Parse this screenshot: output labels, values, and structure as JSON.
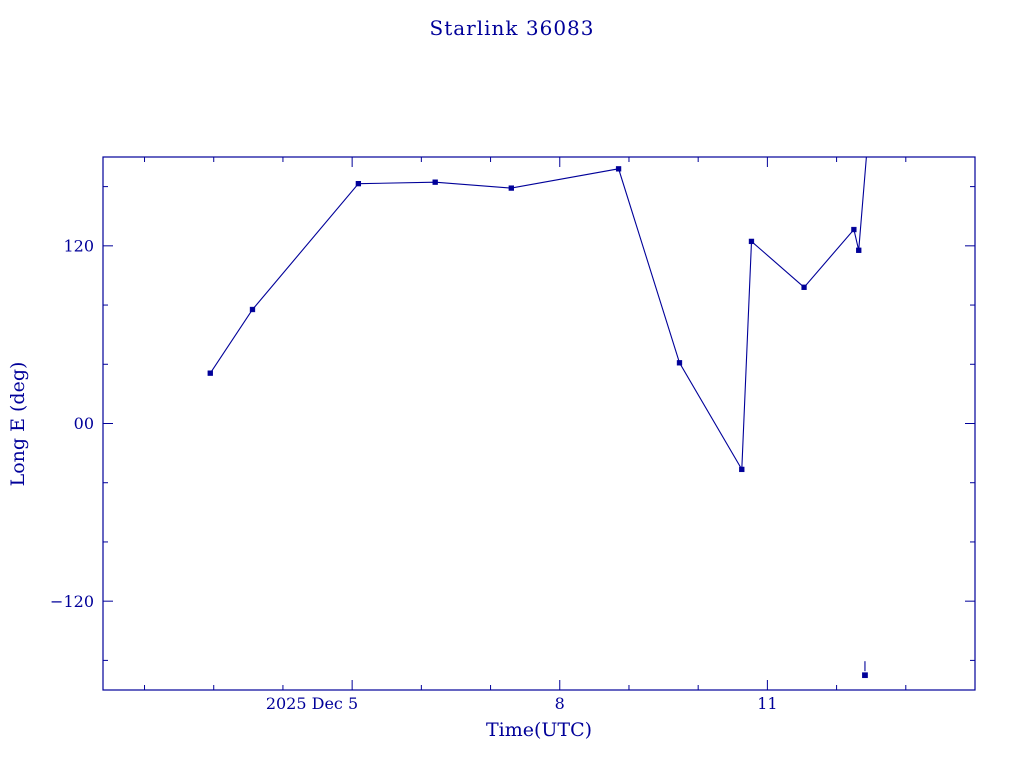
{
  "colors": {
    "plot": "#000099",
    "background": "#ffffff"
  },
  "chart_data": {
    "type": "line",
    "title": "Starlink 36083",
    "xlabel": "Time(UTC)",
    "ylabel": "Long E (deg)",
    "x_unit": "day of December 2025 (UTC), decimal days",
    "xlim": [
      1.4,
      14.0
    ],
    "ylim": [
      -180,
      180
    ],
    "grid": false,
    "legend": "none",
    "tick_style": "inward-all-sides",
    "x_ticks": [
      {
        "value": 5,
        "label": "2025 Dec  5",
        "label_anchor": "end"
      },
      {
        "value": 8,
        "label": "8",
        "label_anchor": "middle"
      },
      {
        "value": 11,
        "label": "11",
        "label_anchor": "middle"
      }
    ],
    "x_minor_ticks": [
      2,
      3,
      4,
      6,
      7,
      9,
      10,
      12,
      13
    ],
    "y_ticks": [
      {
        "value": 120,
        "label": "120"
      },
      {
        "value": 0,
        "label": "00"
      },
      {
        "value": -120,
        "label": "−120"
      }
    ],
    "y_minor_ticks": [
      -160,
      -80,
      -40,
      40,
      80,
      160
    ],
    "series": [
      {
        "name": "Long E (deg)",
        "marker": "filled-square",
        "points": [
          [
            2.95,
            34
          ],
          [
            3.56,
            77
          ],
          [
            5.09,
            162
          ],
          [
            6.2,
            163
          ],
          [
            7.3,
            159
          ],
          [
            8.85,
            172
          ],
          [
            9.73,
            41
          ],
          [
            10.63,
            -31
          ],
          [
            10.77,
            123
          ],
          [
            11.53,
            92
          ],
          [
            12.25,
            131
          ],
          [
            12.32,
            117
          ]
        ],
        "clipped_end": [
          12.44,
          185
        ]
      }
    ],
    "isolated_points": [
      [
        12.41,
        -170
      ]
    ]
  }
}
